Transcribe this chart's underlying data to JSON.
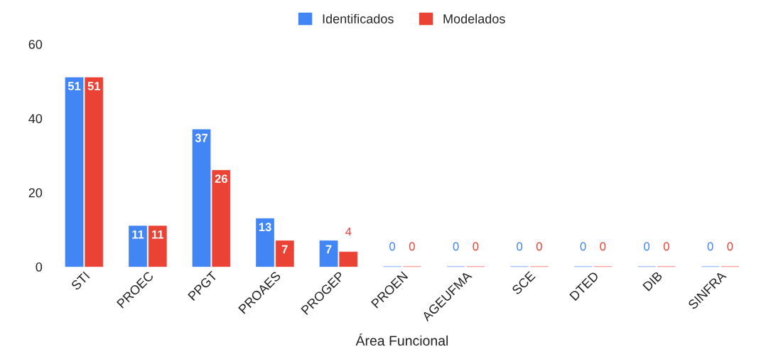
{
  "chart_data": {
    "type": "bar",
    "xlabel": "Área Funcional",
    "categories": [
      "STI",
      "PROEC",
      "PPGT",
      "PROAES",
      "PROGEP",
      "PROEN",
      "AGEUFMA",
      "SCE",
      "DTED",
      "DIB",
      "SINFRA"
    ],
    "series": [
      {
        "name": "Identificados",
        "color": "#4285f4",
        "values": [
          51,
          11,
          37,
          13,
          7,
          0,
          0,
          0,
          0,
          0,
          0
        ]
      },
      {
        "name": "Modelados",
        "color": "#ea4335",
        "values": [
          51,
          11,
          26,
          7,
          4,
          0,
          0,
          0,
          0,
          0,
          0
        ]
      }
    ],
    "ylim": [
      0,
      60
    ],
    "yticks": [
      0,
      20,
      40,
      60
    ],
    "grid": false,
    "legend": "top",
    "data_labels": true
  }
}
